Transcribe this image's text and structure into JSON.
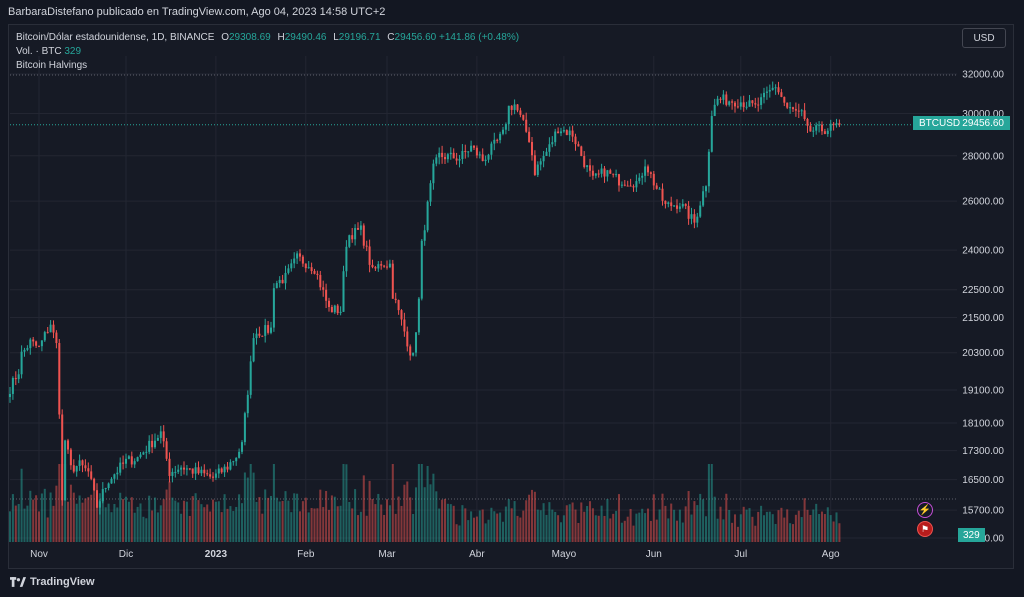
{
  "caption": "BarbaraDistefano publicado en TradingView.com, Ago 04, 2023 14:58 UTC+2",
  "legend": {
    "symbol": "Bitcoin/Dólar estadounidense, 1D, BINANCE",
    "o_label": "O",
    "o_value": "29308.69",
    "h_label": "H",
    "h_value": "29490.46",
    "l_label": "L",
    "l_value": "29196.71",
    "c_label": "C",
    "c_value": "29456.60",
    "change": "+141.86 (+0.48%)",
    "vol_label": "Vol. · BTC",
    "vol_value": "329",
    "indicator": "Bitcoin Halvings"
  },
  "currency_button": "USD",
  "price_tag": {
    "symbol": "BTCUSD",
    "price": "29456.60"
  },
  "volume_tag": "329",
  "brand": "TradingView",
  "colors": {
    "up": "#26a69a",
    "down": "#ef5350",
    "bg": "#161a25",
    "grid": "#232632"
  },
  "icons": [
    "lightning-icon",
    "flag-icon",
    "tradingview-logo-icon"
  ],
  "chart_data": {
    "type": "candlestick",
    "y_scale": "log",
    "y_ticks": [
      15000,
      15700,
      16500,
      17300,
      18100,
      19100,
      20300,
      21500,
      22500,
      24000,
      26000,
      28000,
      30000,
      32000
    ],
    "y_tick_labels": [
      "15000.00",
      "15700.00",
      "16500.00",
      "17300.00",
      "18100.00",
      "19100.00",
      "20300.00",
      "21500.00",
      "22500.00",
      "24000.00",
      "26000.00",
      "28000.00",
      "30000.00",
      "32000.00"
    ],
    "x_labels": [
      "Nov",
      "Dic",
      "2023",
      "Feb",
      "Mar",
      "Abr",
      "Mayo",
      "Jun",
      "Jul",
      "Ago"
    ],
    "last_close": 29456.6,
    "anchors": [
      [
        "2022-10-22",
        19150
      ],
      [
        "2022-10-25",
        19700
      ],
      [
        "2022-10-26",
        20250
      ],
      [
        "2022-10-29",
        20650
      ],
      [
        "2022-11-01",
        20450
      ],
      [
        "2022-11-05",
        21300
      ],
      [
        "2022-11-06",
        20900
      ],
      [
        "2022-11-07",
        20550
      ],
      [
        "2022-11-08",
        18500
      ],
      [
        "2022-11-09",
        15900
      ],
      [
        "2022-11-10",
        17600
      ],
      [
        "2022-11-12",
        16800
      ],
      [
        "2022-11-15",
        16900
      ],
      [
        "2022-11-18",
        16700
      ],
      [
        "2022-11-21",
        15800
      ],
      [
        "2022-11-25",
        16500
      ],
      [
        "2022-12-01",
        17000
      ],
      [
        "2022-12-05",
        17100
      ],
      [
        "2022-12-13",
        17800
      ],
      [
        "2022-12-16",
        16700
      ],
      [
        "2022-12-20",
        16850
      ],
      [
        "2022-12-31",
        16550
      ],
      [
        "2023-01-05",
        16850
      ],
      [
        "2023-01-08",
        17150
      ],
      [
        "2023-01-10",
        17450
      ],
      [
        "2023-01-13",
        19900
      ],
      [
        "2023-01-14",
        20950
      ],
      [
        "2023-01-20",
        21100
      ],
      [
        "2023-01-21",
        22700
      ],
      [
        "2023-01-25",
        22950
      ],
      [
        "2023-01-29",
        23700
      ],
      [
        "2023-02-02",
        23450
      ],
      [
        "2023-02-04",
        23300
      ],
      [
        "2023-02-09",
        21800
      ],
      [
        "2023-02-13",
        21750
      ],
      [
        "2023-02-15",
        24300
      ],
      [
        "2023-02-16",
        24600
      ],
      [
        "2023-02-20",
        24800
      ],
      [
        "2023-02-24",
        23150
      ],
      [
        "2023-02-27",
        23500
      ],
      [
        "2023-03-02",
        23450
      ],
      [
        "2023-03-03",
        22350
      ],
      [
        "2023-03-09",
        20350
      ],
      [
        "2023-03-10",
        20150
      ],
      [
        "2023-03-12",
        22100
      ],
      [
        "2023-03-13",
        24200
      ],
      [
        "2023-03-17",
        27400
      ],
      [
        "2023-03-19",
        28000
      ],
      [
        "2023-03-26",
        27900
      ],
      [
        "2023-03-30",
        28400
      ],
      [
        "2023-04-03",
        27800
      ],
      [
        "2023-04-10",
        29000
      ],
      [
        "2023-04-12",
        30300
      ],
      [
        "2023-04-14",
        30450
      ],
      [
        "2023-04-19",
        28800
      ],
      [
        "2023-04-21",
        27300
      ],
      [
        "2023-04-26",
        28400
      ],
      [
        "2023-04-29",
        29300
      ],
      [
        "2023-05-04",
        29000
      ],
      [
        "2023-05-08",
        27700
      ],
      [
        "2023-05-11",
        26900
      ],
      [
        "2023-05-15",
        27300
      ],
      [
        "2023-05-20",
        26900
      ],
      [
        "2023-05-27",
        26800
      ],
      [
        "2023-05-29",
        27700
      ],
      [
        "2023-06-01",
        26800
      ],
      [
        "2023-06-05",
        25800
      ],
      [
        "2023-06-10",
        25900
      ],
      [
        "2023-06-15",
        25100
      ],
      [
        "2023-06-19",
        26800
      ],
      [
        "2023-06-21",
        30000
      ],
      [
        "2023-06-23",
        30700
      ],
      [
        "2023-07-01",
        30600
      ],
      [
        "2023-07-06",
        30300
      ],
      [
        "2023-07-13",
        31400
      ],
      [
        "2023-07-17",
        30250
      ],
      [
        "2023-07-22",
        29950
      ],
      [
        "2023-07-24",
        29150
      ],
      [
        "2023-07-31",
        29250
      ],
      [
        "2023-08-04",
        29456
      ]
    ]
  }
}
